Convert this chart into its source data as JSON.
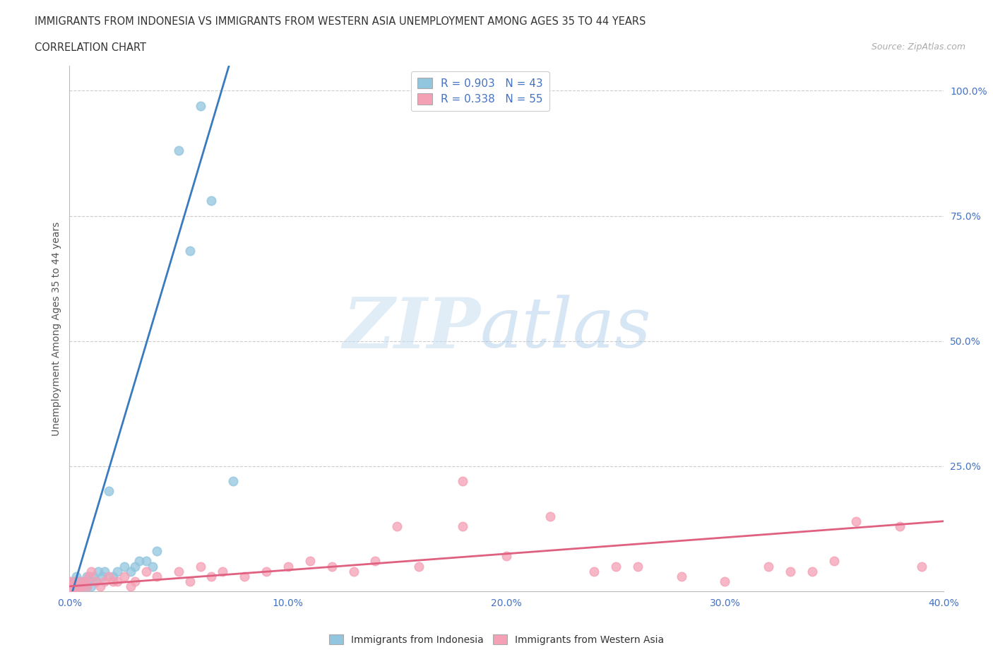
{
  "title_line1": "IMMIGRANTS FROM INDONESIA VS IMMIGRANTS FROM WESTERN ASIA UNEMPLOYMENT AMONG AGES 35 TO 44 YEARS",
  "title_line2": "CORRELATION CHART",
  "source_text": "Source: ZipAtlas.com",
  "ylabel": "Unemployment Among Ages 35 to 44 years",
  "watermark_zip": "ZIP",
  "watermark_atlas": "atlas",
  "R_indonesia": 0.903,
  "N_indonesia": 43,
  "R_western_asia": 0.338,
  "N_western_asia": 55,
  "color_indonesia": "#92c5de",
  "color_western_asia": "#f4a0b5",
  "color_indonesia_line": "#3a7abf",
  "color_western_asia_line": "#e06080",
  "yticks": [
    0.0,
    0.25,
    0.5,
    0.75,
    1.0
  ],
  "ytick_labels": [
    "",
    "25.0%",
    "50.0%",
    "75.0%",
    "100.0%"
  ],
  "xticks": [
    0.0,
    0.1,
    0.2,
    0.3,
    0.4
  ],
  "xtick_labels": [
    "0.0%",
    "10.0%",
    "20.0%",
    "30.0%",
    "40.0%"
  ],
  "xlim": [
    0.0,
    0.4
  ],
  "ylim": [
    0.0,
    1.05
  ],
  "indonesia_x": [
    0.0,
    0.0,
    0.0,
    0.0,
    0.001,
    0.001,
    0.001,
    0.002,
    0.002,
    0.002,
    0.003,
    0.003,
    0.003,
    0.004,
    0.004,
    0.005,
    0.005,
    0.006,
    0.007,
    0.008,
    0.008,
    0.009,
    0.01,
    0.011,
    0.012,
    0.013,
    0.015,
    0.016,
    0.018,
    0.02,
    0.022,
    0.025,
    0.028,
    0.03,
    0.032,
    0.035,
    0.038,
    0.04,
    0.05,
    0.055,
    0.06,
    0.065,
    0.075
  ],
  "indonesia_y": [
    0.0,
    0.0,
    0.01,
    0.02,
    0.0,
    0.01,
    0.02,
    0.0,
    0.01,
    0.02,
    0.0,
    0.01,
    0.03,
    0.01,
    0.02,
    0.0,
    0.02,
    0.01,
    0.02,
    0.01,
    0.03,
    0.02,
    0.01,
    0.03,
    0.02,
    0.04,
    0.03,
    0.04,
    0.2,
    0.03,
    0.04,
    0.05,
    0.04,
    0.05,
    0.06,
    0.06,
    0.05,
    0.08,
    0.88,
    0.68,
    0.97,
    0.78,
    0.22
  ],
  "western_asia_x": [
    0.0,
    0.0,
    0.0,
    0.001,
    0.002,
    0.002,
    0.003,
    0.004,
    0.005,
    0.006,
    0.007,
    0.008,
    0.009,
    0.01,
    0.012,
    0.014,
    0.016,
    0.018,
    0.02,
    0.022,
    0.025,
    0.028,
    0.03,
    0.035,
    0.04,
    0.05,
    0.055,
    0.06,
    0.065,
    0.07,
    0.08,
    0.09,
    0.1,
    0.11,
    0.12,
    0.13,
    0.14,
    0.15,
    0.16,
    0.18,
    0.2,
    0.22,
    0.24,
    0.26,
    0.28,
    0.3,
    0.32,
    0.34,
    0.36,
    0.38,
    0.39,
    0.35,
    0.25,
    0.18,
    0.33
  ],
  "western_asia_y": [
    0.0,
    0.01,
    0.02,
    0.01,
    0.0,
    0.02,
    0.01,
    0.0,
    0.02,
    0.01,
    0.02,
    0.01,
    0.03,
    0.04,
    0.02,
    0.01,
    0.02,
    0.03,
    0.02,
    0.02,
    0.03,
    0.01,
    0.02,
    0.04,
    0.03,
    0.04,
    0.02,
    0.05,
    0.03,
    0.04,
    0.03,
    0.04,
    0.05,
    0.06,
    0.05,
    0.04,
    0.06,
    0.13,
    0.05,
    0.13,
    0.07,
    0.15,
    0.04,
    0.05,
    0.03,
    0.02,
    0.05,
    0.04,
    0.14,
    0.13,
    0.05,
    0.06,
    0.05,
    0.22,
    0.04
  ],
  "indo_line_x0": 0.0,
  "indo_line_x1": 0.073,
  "indo_line_y0": -0.02,
  "indo_line_y1": 1.05,
  "wa_line_x0": 0.0,
  "wa_line_x1": 0.4,
  "wa_line_y0": 0.01,
  "wa_line_y1": 0.14
}
